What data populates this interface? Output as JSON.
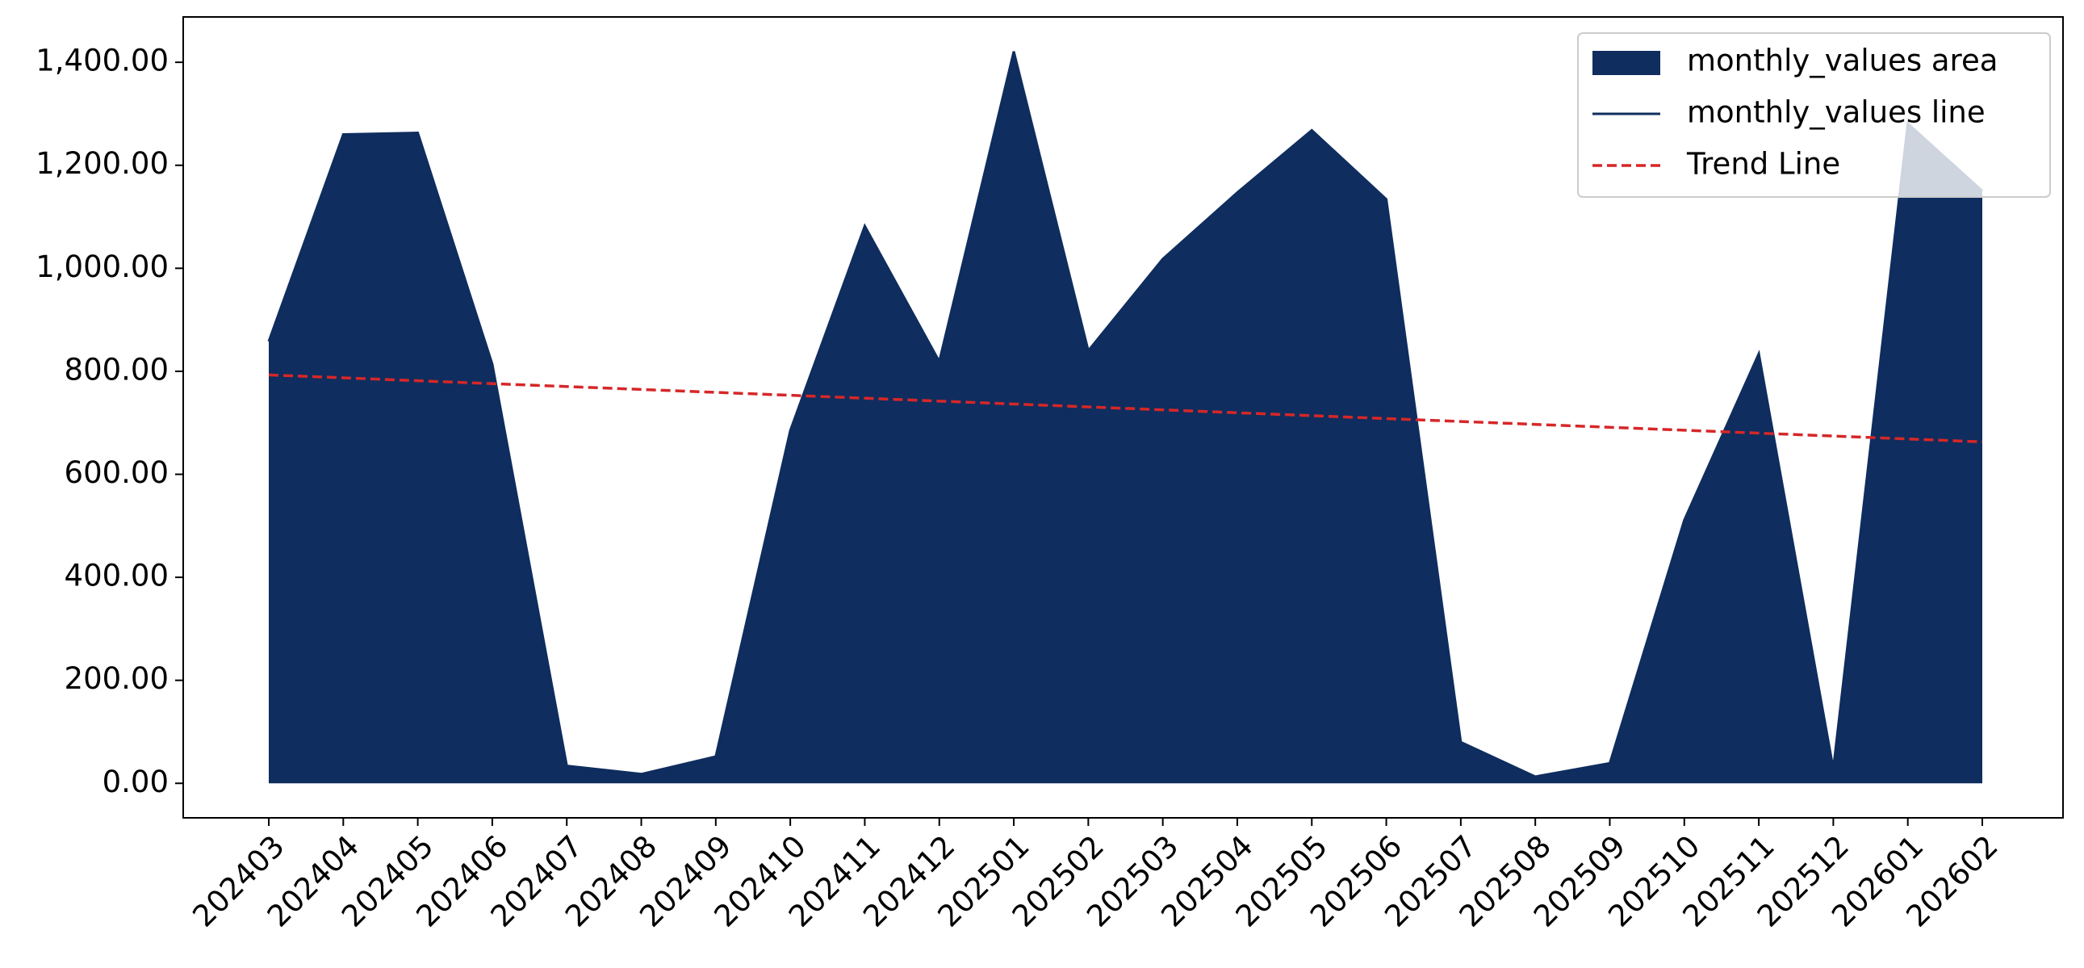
{
  "chart_data": {
    "type": "area",
    "categories": [
      "202403",
      "202404",
      "202405",
      "202406",
      "202407",
      "202408",
      "202409",
      "202410",
      "202411",
      "202412",
      "202501",
      "202502",
      "202503",
      "202504",
      "202505",
      "202506",
      "202507",
      "202508",
      "202509",
      "202510",
      "202511",
      "202512",
      "202601",
      "202602"
    ],
    "series": [
      {
        "name": "monthly_values area",
        "line_name": "monthly_values line",
        "color": "#0f2d5e",
        "values": [
          858,
          1260,
          1263,
          814,
          34,
          18,
          52,
          685,
          1082,
          819,
          1421,
          840,
          1018,
          1147,
          1268,
          1134,
          80,
          13,
          39,
          511,
          834,
          28,
          1281,
          1150
        ]
      }
    ],
    "trend": {
      "name": "Trend Line",
      "color": "#d62728",
      "start": 793,
      "end": 663
    },
    "ylim": [
      -67,
      1488
    ],
    "yticks": [
      {
        "value": 0,
        "label": "0.00"
      },
      {
        "value": 200,
        "label": "200.00"
      },
      {
        "value": 400,
        "label": "400.00"
      },
      {
        "value": 600,
        "label": "600.00"
      },
      {
        "value": 800,
        "label": "800.00"
      },
      {
        "value": 1000,
        "label": "1,000.00"
      },
      {
        "value": 1200,
        "label": "1,200.00"
      },
      {
        "value": 1400,
        "label": "1,400.00"
      }
    ],
    "legend": "upper right"
  }
}
